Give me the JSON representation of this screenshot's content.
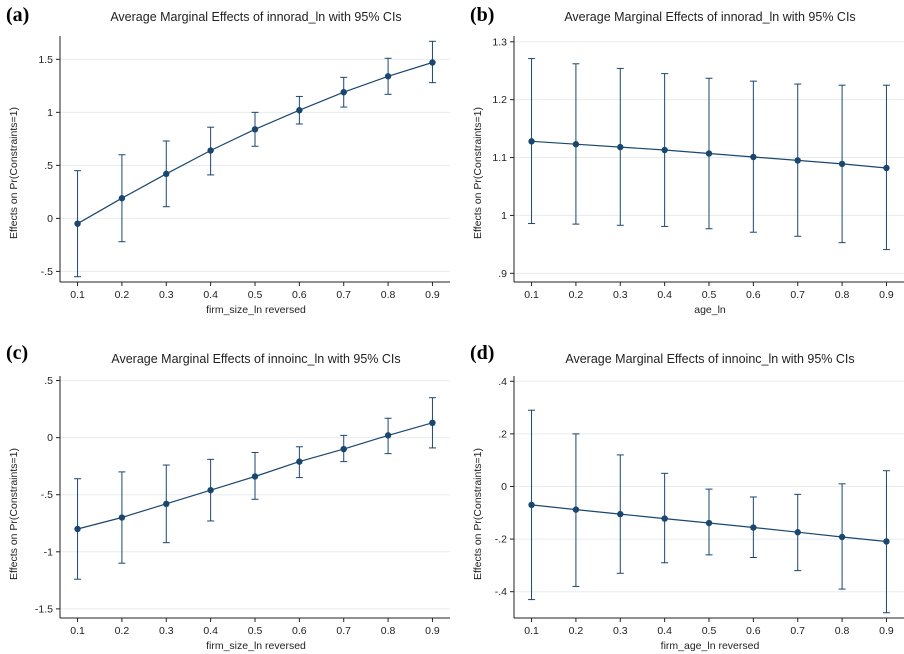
{
  "colors": {
    "series": "#1a476f",
    "grid": "#e8ecef",
    "axis": "#222222"
  },
  "chart_data": [
    {
      "panel": "(a)",
      "type": "line",
      "title": "Average Marginal Effects of innorad_ln with 95% CIs",
      "xlabel": "firm_size_ln reversed",
      "ylabel": "Effects on Pr(Constraints=1)",
      "x": [
        0.1,
        0.2,
        0.3,
        0.4,
        0.5,
        0.6,
        0.7,
        0.8,
        0.9
      ],
      "xticks": [
        "0.1",
        "0.2",
        "0.3",
        "0.4",
        "0.5",
        "0.6",
        "0.7",
        "0.8",
        "0.9"
      ],
      "y": [
        -0.05,
        0.19,
        0.42,
        0.64,
        0.84,
        1.02,
        1.19,
        1.34,
        1.47
      ],
      "ci_low": [
        -0.55,
        -0.22,
        0.11,
        0.41,
        0.68,
        0.89,
        1.05,
        1.17,
        1.28
      ],
      "ci_high": [
        0.45,
        0.6,
        0.73,
        0.86,
        1.0,
        1.15,
        1.33,
        1.51,
        1.67
      ],
      "yticks": [
        -0.5,
        0,
        0.5,
        1,
        1.5
      ],
      "ytick_labels": [
        "-.5",
        "0",
        ".5",
        "1",
        "1.5"
      ],
      "ylim": [
        -0.6,
        1.72
      ],
      "grid": true
    },
    {
      "panel": "(b)",
      "type": "line",
      "title": "Average Marginal Effects of innorad_ln with 95% CIs",
      "xlabel": "age_ln",
      "ylabel": "Effects on Pr(Constraints=1)",
      "x": [
        0.1,
        0.2,
        0.3,
        0.4,
        0.5,
        0.6,
        0.7,
        0.8,
        0.9
      ],
      "xticks": [
        "0.1",
        "0.2",
        "0.3",
        "0.4",
        "0.5",
        "0.6",
        "0.7",
        "0.8",
        "0.9"
      ],
      "y": [
        1.128,
        1.123,
        1.118,
        1.113,
        1.107,
        1.101,
        1.095,
        1.089,
        1.082
      ],
      "ci_low": [
        0.986,
        0.985,
        0.983,
        0.981,
        0.977,
        0.971,
        0.964,
        0.953,
        0.941
      ],
      "ci_high": [
        1.271,
        1.262,
        1.254,
        1.245,
        1.237,
        1.232,
        1.227,
        1.225,
        1.225
      ],
      "yticks": [
        0.9,
        1,
        1.1,
        1.2,
        1.3
      ],
      "ytick_labels": [
        ".9",
        "1",
        "1.1",
        "1.2",
        "1.3"
      ],
      "ylim": [
        0.885,
        1.31
      ],
      "grid": true
    },
    {
      "panel": "(c)",
      "type": "line",
      "title": "Average Marginal Effects of innoinc_ln with 95% CIs",
      "xlabel": "firm_size_ln reversed",
      "ylabel": "Effects on Pr(Constraints=1)",
      "x": [
        0.1,
        0.2,
        0.3,
        0.4,
        0.5,
        0.6,
        0.7,
        0.8,
        0.9
      ],
      "xticks": [
        "0.1",
        "0.2",
        "0.3",
        "0.4",
        "0.5",
        "0.6",
        "0.7",
        "0.8",
        "0.9"
      ],
      "y": [
        -0.8,
        -0.7,
        -0.58,
        -0.46,
        -0.34,
        -0.21,
        -0.1,
        0.02,
        0.13
      ],
      "ci_low": [
        -1.24,
        -1.1,
        -0.92,
        -0.73,
        -0.54,
        -0.35,
        -0.21,
        -0.14,
        -0.09
      ],
      "ci_high": [
        -0.36,
        -0.3,
        -0.24,
        -0.19,
        -0.13,
        -0.08,
        0.02,
        0.17,
        0.35
      ],
      "yticks": [
        -1.5,
        -1,
        -0.5,
        0,
        0.5
      ],
      "ytick_labels": [
        "-1.5",
        "-1",
        "-.5",
        "0",
        ".5"
      ],
      "ylim": [
        -1.58,
        0.54
      ],
      "grid": true
    },
    {
      "panel": "(d)",
      "type": "line",
      "title": "Average Marginal Effects of innoinc_ln with 95% CIs",
      "xlabel": "firm_age_ln reversed",
      "ylabel": "Effects on Pr(Constraints=1)",
      "x": [
        0.1,
        0.2,
        0.3,
        0.4,
        0.5,
        0.6,
        0.7,
        0.8,
        0.9
      ],
      "xticks": [
        "0.1",
        "0.2",
        "0.3",
        "0.4",
        "0.5",
        "0.6",
        "0.7",
        "0.8",
        "0.9"
      ],
      "y": [
        -0.07,
        -0.088,
        -0.105,
        -0.122,
        -0.139,
        -0.156,
        -0.174,
        -0.192,
        -0.209
      ],
      "ci_low": [
        -0.43,
        -0.38,
        -0.33,
        -0.29,
        -0.26,
        -0.27,
        -0.32,
        -0.39,
        -0.48
      ],
      "ci_high": [
        0.29,
        0.2,
        0.12,
        0.05,
        -0.01,
        -0.04,
        -0.03,
        0.01,
        0.06
      ],
      "yticks": [
        -0.4,
        -0.2,
        0,
        0.2,
        0.4
      ],
      "ytick_labels": [
        "-.4",
        "-.2",
        "0",
        ".2",
        ".4"
      ],
      "ylim": [
        -0.5,
        0.42
      ],
      "grid": true
    }
  ]
}
